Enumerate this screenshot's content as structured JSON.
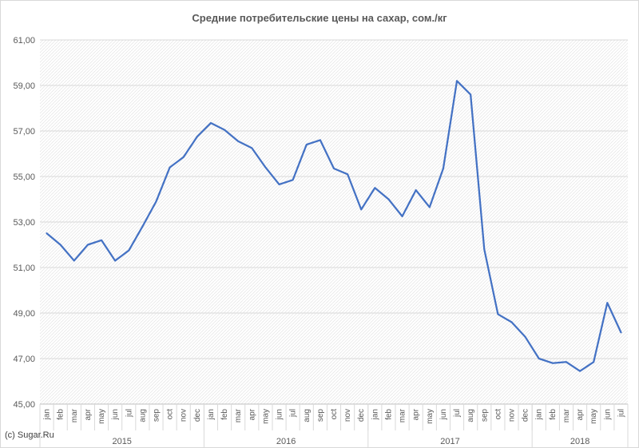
{
  "chart_data": {
    "type": "line",
    "title": "Средние потребительские цены на сахар, сом./кг",
    "credit": "(c) Sugar.Ru",
    "ylim": [
      45,
      61
    ],
    "yticks": [
      "45,00",
      "47,00",
      "49,00",
      "51,00",
      "53,00",
      "55,00",
      "57,00",
      "59,00",
      "61,00"
    ],
    "grid": true,
    "line_color": "#4472C4",
    "month_labels": [
      "jan",
      "feb",
      "mar",
      "apr",
      "may",
      "jun",
      "jul",
      "aug",
      "sep",
      "oct",
      "nov",
      "dec"
    ],
    "years": [
      {
        "label": "2015",
        "months": 12
      },
      {
        "label": "2016",
        "months": 12
      },
      {
        "label": "2017",
        "months": 12
      },
      {
        "label": "2018",
        "months": 7
      }
    ],
    "values": [
      52.5,
      52.0,
      51.3,
      52.0,
      52.2,
      51.3,
      51.75,
      52.8,
      53.9,
      55.4,
      55.85,
      56.75,
      57.35,
      57.05,
      56.55,
      56.25,
      55.4,
      54.65,
      54.85,
      56.4,
      56.6,
      55.35,
      55.1,
      53.55,
      54.5,
      54.0,
      53.25,
      54.4,
      53.65,
      55.35,
      59.2,
      58.6,
      51.8,
      48.95,
      48.6,
      47.95,
      47.0,
      46.8,
      46.85,
      46.45,
      46.85,
      49.45,
      48.15
    ]
  }
}
